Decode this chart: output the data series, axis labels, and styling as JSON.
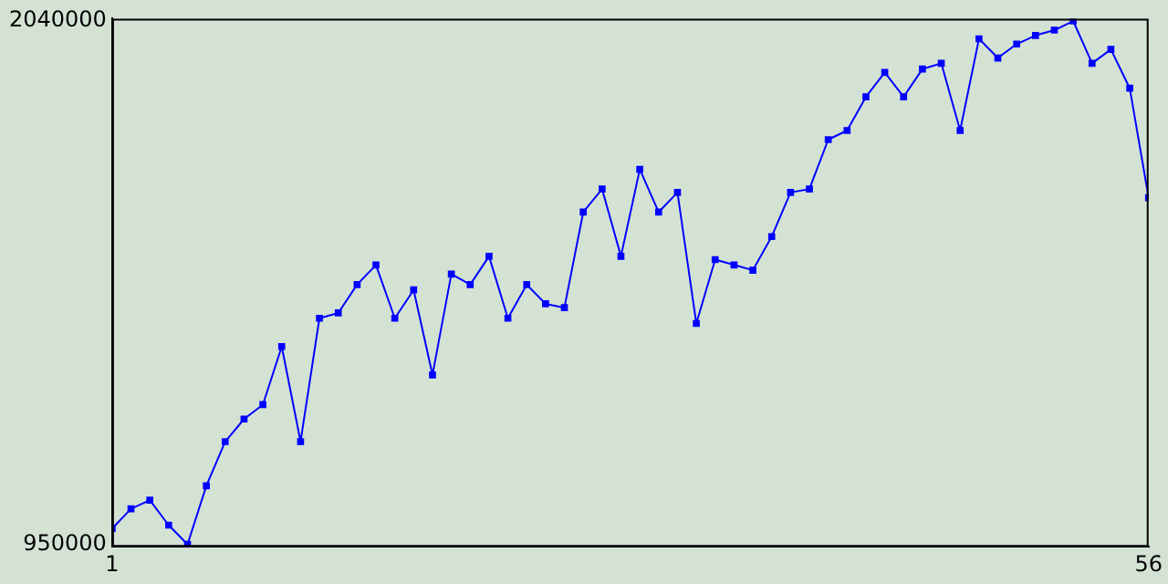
{
  "chart_data": {
    "type": "line",
    "x": [
      1,
      2,
      3,
      4,
      5,
      6,
      7,
      8,
      9,
      10,
      11,
      12,
      13,
      14,
      15,
      16,
      17,
      18,
      19,
      20,
      21,
      22,
      23,
      24,
      25,
      26,
      27,
      28,
      29,
      30,
      31,
      32,
      33,
      34,
      35,
      36,
      37,
      38,
      39,
      40,
      41,
      42,
      43,
      44,
      45,
      46,
      47,
      48,
      49,
      50,
      51,
      52,
      53,
      54,
      55,
      56
    ],
    "series": [
      {
        "color": "#0000ff",
        "values": [
          983000,
          1024000,
          1042000,
          990000,
          950000,
          1072000,
          1164000,
          1211000,
          1241000,
          1362000,
          1164000,
          1421000,
          1432000,
          1491000,
          1532000,
          1421000,
          1480000,
          1303000,
          1513000,
          1491000,
          1550000,
          1421000,
          1491000,
          1451000,
          1443000,
          1642000,
          1690000,
          1550000,
          1731000,
          1642000,
          1683000,
          1410000,
          1543000,
          1532000,
          1521000,
          1591000,
          1683000,
          1690000,
          1793000,
          1812000,
          1882000,
          1933000,
          1882000,
          1940000,
          1952000,
          1812000,
          2003000,
          1963000,
          1992000,
          2010000,
          2021000,
          2040000,
          1952000,
          1981000,
          1900000,
          1672000
        ]
      }
    ],
    "xlim": [
      1,
      56
    ],
    "xticks": [
      1,
      56
    ],
    "ylim": [
      945000,
      2045000
    ],
    "yticks": [
      950000,
      2040000
    ],
    "grid": false,
    "legend": false,
    "marker": "square",
    "line_style": "solid"
  }
}
